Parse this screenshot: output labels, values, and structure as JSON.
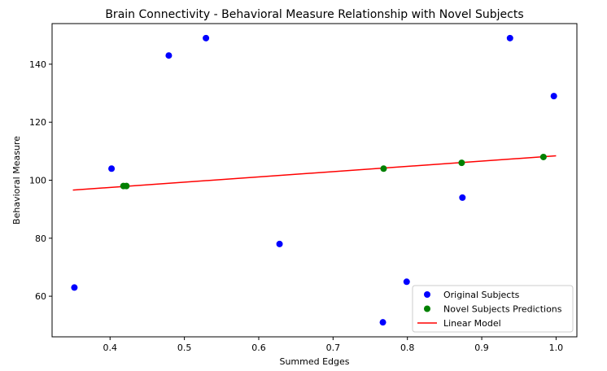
{
  "chart_data": {
    "type": "scatter",
    "title": "Brain Connectivity - Behavioral Measure Relationship with Novel Subjects",
    "xlabel": "Summed Edges",
    "ylabel": "Behavioral Measure",
    "xlim": [
      0.322,
      1.028
    ],
    "ylim": [
      46,
      154
    ],
    "xticks": [
      0.4,
      0.5,
      0.6,
      0.7,
      0.8,
      0.9,
      1.0
    ],
    "xtick_labels": [
      "0.4",
      "0.5",
      "0.6",
      "0.7",
      "0.8",
      "0.9",
      "1.0"
    ],
    "yticks": [
      60,
      80,
      100,
      120,
      140
    ],
    "ytick_labels": [
      "60",
      "80",
      "100",
      "120",
      "140"
    ],
    "grid": false,
    "legend_position": "lower-right",
    "series": [
      {
        "name": "Original Subjects",
        "kind": "scatter",
        "color": "#0000ff",
        "points": [
          {
            "x": 0.352,
            "y": 63
          },
          {
            "x": 0.402,
            "y": 104
          },
          {
            "x": 0.479,
            "y": 143
          },
          {
            "x": 0.529,
            "y": 149
          },
          {
            "x": 0.628,
            "y": 78
          },
          {
            "x": 0.767,
            "y": 51
          },
          {
            "x": 0.799,
            "y": 65
          },
          {
            "x": 0.874,
            "y": 94
          },
          {
            "x": 0.938,
            "y": 149
          },
          {
            "x": 0.997,
            "y": 129
          }
        ]
      },
      {
        "name": "Novel Subjects Predictions",
        "kind": "scatter",
        "color": "#008000",
        "points": [
          {
            "x": 0.418,
            "y": 98
          },
          {
            "x": 0.422,
            "y": 98
          },
          {
            "x": 0.768,
            "y": 104
          },
          {
            "x": 0.873,
            "y": 106
          },
          {
            "x": 0.983,
            "y": 108
          }
        ]
      },
      {
        "name": "Linear Model",
        "kind": "line",
        "color": "#ff0000",
        "points": [
          {
            "x": 0.35,
            "y": 96.6
          },
          {
            "x": 1.0,
            "y": 108.4
          }
        ]
      }
    ]
  }
}
